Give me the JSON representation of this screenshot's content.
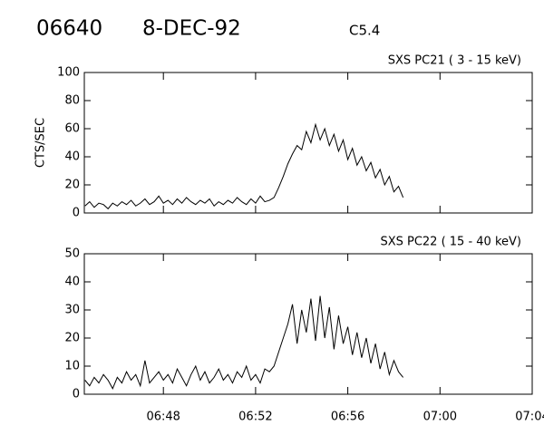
{
  "header": {
    "id": "06640",
    "date": "8-DEC-92",
    "class": "C5.4"
  },
  "chart_data": [
    {
      "type": "line",
      "title": "SXS PC21  (  3 - 15 keV)",
      "ylabel": "CTS/SEC",
      "x": [
        44.6,
        44.8,
        45.0,
        45.2,
        45.4,
        45.6,
        45.8,
        46.0,
        46.2,
        46.4,
        46.6,
        46.8,
        47.0,
        47.2,
        47.4,
        47.6,
        47.8,
        48.0,
        48.2,
        48.4,
        48.6,
        48.8,
        49.0,
        49.2,
        49.4,
        49.6,
        49.8,
        50.0,
        50.2,
        50.4,
        50.6,
        50.8,
        51.0,
        51.2,
        51.4,
        51.6,
        51.8,
        52.0,
        52.2,
        52.4,
        52.6,
        52.8,
        53.0,
        53.2,
        53.4,
        53.6,
        53.8,
        54.0,
        54.2,
        54.4,
        54.6,
        54.8,
        55.0,
        55.2,
        55.4,
        55.6,
        55.8,
        56.0,
        56.2,
        56.4,
        56.6,
        56.8,
        57.0,
        57.2,
        57.4,
        57.6,
        57.8,
        58.0,
        58.2,
        58.4
      ],
      "series": [
        {
          "color": "#000000",
          "values": [
            5,
            8,
            4,
            7,
            6,
            3,
            7,
            5,
            8,
            6,
            9,
            5,
            7,
            10,
            6,
            8,
            12,
            7,
            9,
            6,
            10,
            7,
            11,
            8,
            6,
            9,
            7,
            10,
            5,
            8,
            6,
            9,
            7,
            11,
            8,
            6,
            10,
            7,
            12,
            8,
            9,
            11,
            18,
            26,
            35,
            42,
            48,
            45,
            58,
            50,
            63,
            52,
            60,
            48,
            56,
            44,
            52,
            38,
            46,
            34,
            40,
            30,
            36,
            25,
            31,
            20,
            26,
            15,
            19,
            11
          ]
        }
      ],
      "xlim": [
        44.57,
        64.0
      ],
      "xticks": [
        48,
        52,
        56,
        60,
        64
      ],
      "ylim": [
        0,
        100
      ],
      "yticks": [
        0,
        20,
        40,
        60,
        80,
        100
      ]
    },
    {
      "type": "line",
      "title": "SXS PC22  ( 15 - 40 keV)",
      "x": [
        44.6,
        44.8,
        45.0,
        45.2,
        45.4,
        45.6,
        45.8,
        46.0,
        46.2,
        46.4,
        46.6,
        46.8,
        47.0,
        47.2,
        47.4,
        47.6,
        47.8,
        48.0,
        48.2,
        48.4,
        48.6,
        48.8,
        49.0,
        49.2,
        49.4,
        49.6,
        49.8,
        50.0,
        50.2,
        50.4,
        50.6,
        50.8,
        51.0,
        51.2,
        51.4,
        51.6,
        51.8,
        52.0,
        52.2,
        52.4,
        52.6,
        52.8,
        53.0,
        53.2,
        53.4,
        53.6,
        53.8,
        54.0,
        54.2,
        54.4,
        54.6,
        54.8,
        55.0,
        55.2,
        55.4,
        55.6,
        55.8,
        56.0,
        56.2,
        56.4,
        56.6,
        56.8,
        57.0,
        57.2,
        57.4,
        57.6,
        57.8,
        58.0,
        58.2,
        58.4
      ],
      "series": [
        {
          "color": "#000000",
          "values": [
            5,
            3,
            6,
            4,
            7,
            5,
            2,
            6,
            4,
            8,
            5,
            7,
            3,
            12,
            4,
            6,
            8,
            5,
            7,
            4,
            9,
            6,
            3,
            7,
            10,
            5,
            8,
            4,
            6,
            9,
            5,
            7,
            4,
            8,
            6,
            10,
            5,
            7,
            4,
            9,
            8,
            10,
            15,
            20,
            25,
            32,
            18,
            30,
            22,
            34,
            19,
            35,
            20,
            31,
            16,
            28,
            18,
            24,
            14,
            22,
            13,
            20,
            11,
            18,
            9,
            15,
            7,
            12,
            8,
            6
          ]
        }
      ],
      "xlim": [
        44.57,
        64.0
      ],
      "xticks": [
        {
          "value": 48,
          "label": "06:48"
        },
        {
          "value": 52,
          "label": "06:52"
        },
        {
          "value": 56,
          "label": "06:56"
        },
        {
          "value": 60,
          "label": "07:00"
        },
        {
          "value": 64,
          "label": "07:04"
        }
      ],
      "ylim": [
        0,
        50
      ],
      "yticks": [
        0,
        10,
        20,
        30,
        40,
        50
      ]
    }
  ]
}
